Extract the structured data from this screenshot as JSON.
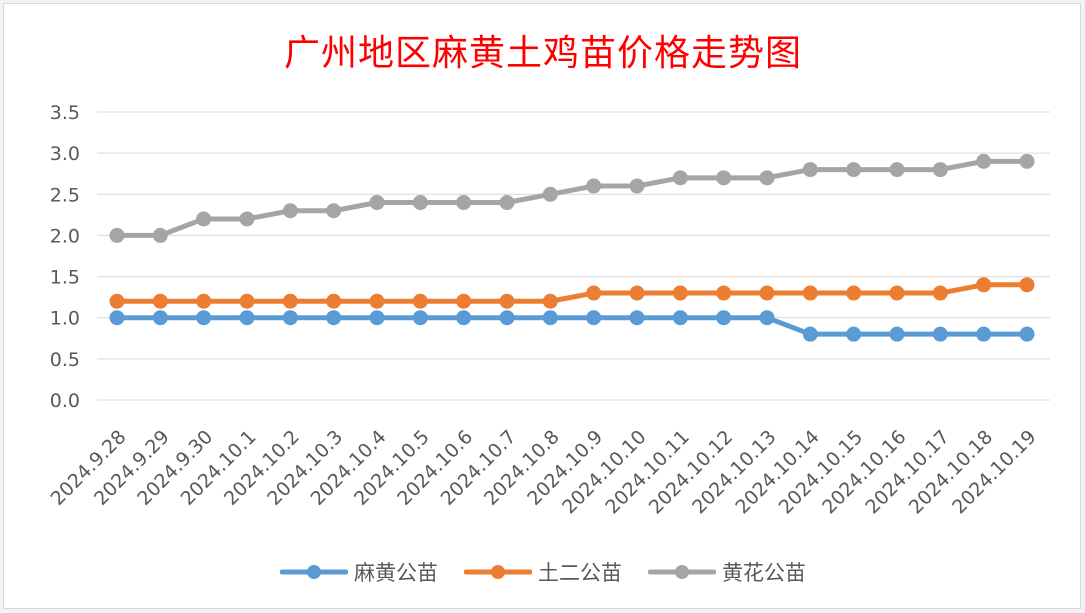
{
  "chart_data": {
    "type": "line",
    "title": "广州地区麻黄土鸡苗价格走势图",
    "categories": [
      "2024.9.28",
      "2024.9.29",
      "2024.9.30",
      "2024.10.1",
      "2024.10.2",
      "2024.10.3",
      "2024.10.4",
      "2024.10.5",
      "2024.10.6",
      "2024.10.7",
      "2024.10.8",
      "2024.10.9",
      "2024.10.10",
      "2024.10.11",
      "2024.10.12",
      "2024.10.13",
      "2024.10.14",
      "2024.10.15",
      "2024.10.16",
      "2024.10.17",
      "2024.10.18",
      "2024.10.19"
    ],
    "series": [
      {
        "name": "麻黄公苗",
        "color": "#5b9bd5",
        "values": [
          1.0,
          1.0,
          1.0,
          1.0,
          1.0,
          1.0,
          1.0,
          1.0,
          1.0,
          1.0,
          1.0,
          1.0,
          1.0,
          1.0,
          1.0,
          1.0,
          0.8,
          0.8,
          0.8,
          0.8,
          0.8,
          0.8
        ]
      },
      {
        "name": "土二公苗",
        "color": "#ed7d31",
        "values": [
          1.2,
          1.2,
          1.2,
          1.2,
          1.2,
          1.2,
          1.2,
          1.2,
          1.2,
          1.2,
          1.2,
          1.3,
          1.3,
          1.3,
          1.3,
          1.3,
          1.3,
          1.3,
          1.3,
          1.3,
          1.4,
          1.4
        ]
      },
      {
        "name": "黄花公苗",
        "color": "#a5a5a5",
        "values": [
          2.0,
          2.0,
          2.2,
          2.2,
          2.3,
          2.3,
          2.4,
          2.4,
          2.4,
          2.4,
          2.5,
          2.6,
          2.6,
          2.7,
          2.7,
          2.7,
          2.8,
          2.8,
          2.8,
          2.8,
          2.9,
          2.9
        ]
      }
    ],
    "ylim": [
      0,
      3.5
    ],
    "yticks": [
      "0.0",
      "0.5",
      "1.0",
      "1.5",
      "2.0",
      "2.5",
      "3.0",
      "3.5"
    ],
    "grid": true,
    "legend_position": "bottom"
  }
}
